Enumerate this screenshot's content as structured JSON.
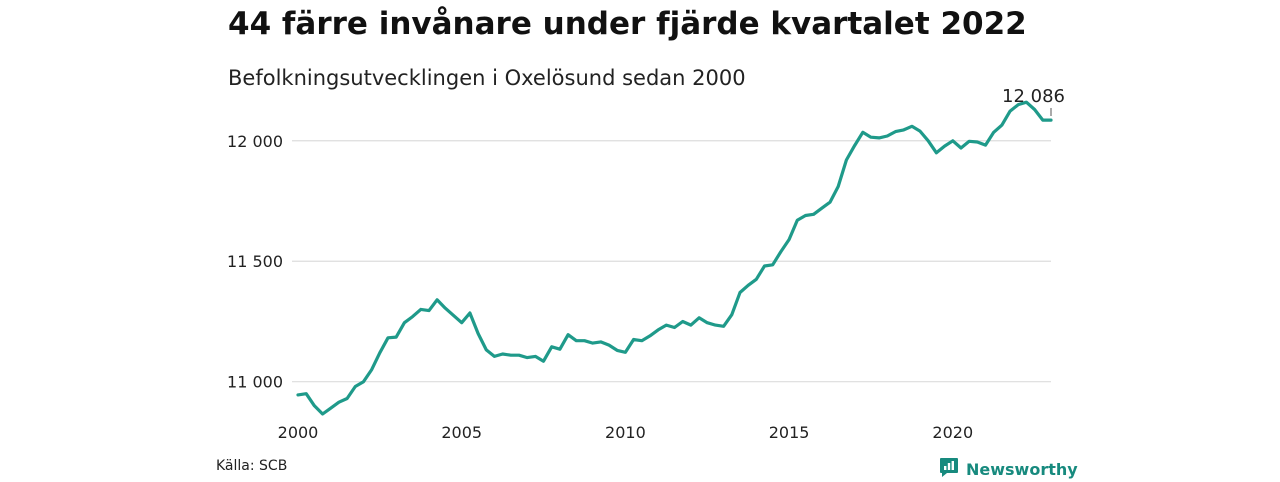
{
  "header": {
    "title": "44 färre invånare under fjärde kvartalet 2022",
    "subtitle": "Befolkningsutvecklingen i Oxelösund sedan 2000"
  },
  "footer": {
    "source": "Källa: SCB",
    "brand": "Newsworthy"
  },
  "colors": {
    "line": "#1f9a8a",
    "grid": "#dddddd",
    "brand": "#178a7e"
  },
  "chart_data": {
    "type": "line",
    "title": "44 färre invånare under fjärde kvartalet 2022",
    "subtitle": "Befolkningsutvecklingen i Oxelösund sedan 2000",
    "xlabel": "",
    "ylabel": "",
    "x_ticks": [
      "2000",
      "2005",
      "2010",
      "2015",
      "2020"
    ],
    "y_ticks": [
      "11 000",
      "11 500",
      "12 000"
    ],
    "x_tick_values": [
      2000,
      2005,
      2010,
      2015,
      2020
    ],
    "y_tick_values": [
      11000,
      11500,
      12000
    ],
    "xlim": [
      2000,
      2023
    ],
    "ylim": [
      10870,
      12190
    ],
    "grid": "horizontal",
    "end_label": "12 086",
    "series": [
      {
        "x": [
          2000.0,
          2000.25,
          2000.5,
          2000.75,
          2001.0,
          2001.25,
          2001.5,
          2001.75,
          2002.0,
          2002.25,
          2002.5,
          2002.75,
          2003.0,
          2003.25,
          2003.5,
          2003.75,
          2004.0,
          2004.25,
          2004.5,
          2004.75,
          2005.0,
          2005.25,
          2005.5,
          2005.75,
          2006.0,
          2006.25,
          2006.5,
          2006.75,
          2007.0,
          2007.25,
          2007.5,
          2007.75,
          2008.0,
          2008.25,
          2008.5,
          2008.75,
          2009.0,
          2009.25,
          2009.5,
          2009.75,
          2010.0,
          2010.25,
          2010.5,
          2010.75,
          2011.0,
          2011.25,
          2011.5,
          2011.75,
          2012.0,
          2012.25,
          2012.5,
          2012.75,
          2013.0,
          2013.25,
          2013.5,
          2013.75,
          2014.0,
          2014.25,
          2014.5,
          2014.75,
          2015.0,
          2015.25,
          2015.5,
          2015.75,
          2016.0,
          2016.25,
          2016.5,
          2016.75,
          2017.0,
          2017.25,
          2017.5,
          2017.75,
          2018.0,
          2018.25,
          2018.5,
          2018.75,
          2019.0,
          2019.25,
          2019.5,
          2019.75,
          2020.0,
          2020.25,
          2020.5,
          2020.75,
          2021.0,
          2021.25,
          2021.5,
          2021.75,
          2022.0,
          2022.25,
          2022.5,
          2022.75,
          2023.0
        ],
        "values": [
          10945,
          10950,
          10900,
          10866,
          10890,
          10915,
          10930,
          10980,
          11000,
          11050,
          11120,
          11182,
          11185,
          11245,
          11270,
          11300,
          11295,
          11340,
          11305,
          11275,
          11245,
          11285,
          11200,
          11132,
          11105,
          11115,
          11110,
          11110,
          11100,
          11105,
          11085,
          11145,
          11135,
          11195,
          11170,
          11170,
          11160,
          11165,
          11152,
          11130,
          11122,
          11175,
          11170,
          11190,
          11215,
          11235,
          11225,
          11250,
          11235,
          11265,
          11245,
          11235,
          11230,
          11278,
          11370,
          11400,
          11425,
          11480,
          11485,
          11540,
          11590,
          11670,
          11690,
          11695,
          11720,
          11745,
          11810,
          11920,
          11980,
          12035,
          12015,
          12012,
          12020,
          12038,
          12045,
          12060,
          12040,
          12000,
          11950,
          11978,
          12000,
          11970,
          11998,
          11995,
          11982,
          12035,
          12065,
          12123,
          12150,
          12160,
          12130,
          12086,
          12086
        ]
      }
    ]
  }
}
